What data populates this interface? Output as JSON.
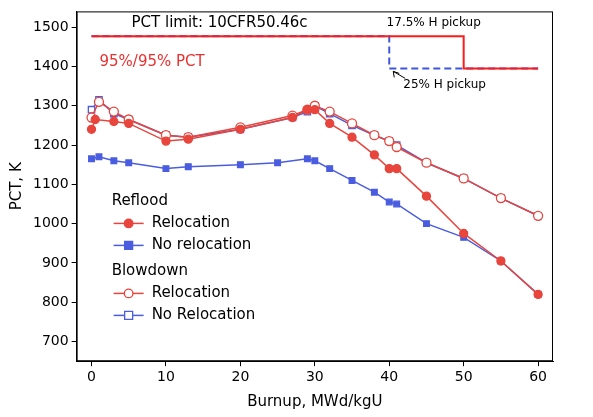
{
  "chart_data": {
    "type": "line",
    "x_label": "Burnup, MWd/kgU",
    "y_label": "PCT, K",
    "xlim": [
      -2,
      62
    ],
    "xticks": [
      0,
      10,
      20,
      30,
      40,
      50,
      60
    ],
    "ylim": [
      650,
      1540
    ],
    "yticks": [
      700,
      800,
      900,
      1000,
      1100,
      1200,
      1300,
      1400,
      1500
    ],
    "grid": false,
    "series": [
      {
        "group": "Reflood",
        "name": "Relocation",
        "color": "#e8453c",
        "marker": "circle",
        "line_style": "solid",
        "x": [
          0,
          0.5,
          3,
          5,
          10,
          13,
          20,
          27,
          29,
          30,
          32,
          35,
          38,
          40,
          41,
          45,
          50,
          55,
          60
        ],
        "values": [
          1240,
          1265,
          1260,
          1255,
          1210,
          1215,
          1240,
          1270,
          1290,
          1290,
          1255,
          1220,
          1175,
          1140,
          1140,
          1070,
          975,
          905,
          820
        ]
      },
      {
        "group": "Reflood",
        "name": "No relocation",
        "color": "#4a5de0",
        "marker": "square",
        "line_style": "solid",
        "x": [
          0,
          1,
          3,
          5,
          10,
          13,
          20,
          25,
          29,
          30,
          32,
          35,
          38,
          40,
          41,
          45,
          50,
          55,
          60
        ],
        "values": [
          1165,
          1170,
          1160,
          1155,
          1140,
          1145,
          1150,
          1155,
          1165,
          1160,
          1140,
          1110,
          1080,
          1055,
          1050,
          1000,
          965,
          905,
          820
        ]
      },
      {
        "group": "Blowdown",
        "name": "Relocation",
        "color": "#e8453c",
        "marker": "open_circle",
        "line_style": "solid",
        "x": [
          0,
          1,
          3,
          5,
          10,
          13,
          20,
          27,
          29,
          30,
          32,
          35,
          38,
          40,
          41,
          45,
          50,
          55,
          60
        ],
        "values": [
          1270,
          1310,
          1285,
          1265,
          1225,
          1220,
          1245,
          1275,
          1290,
          1300,
          1285,
          1255,
          1225,
          1210,
          1195,
          1155,
          1115,
          1065,
          1020
        ]
      },
      {
        "group": "Blowdown",
        "name": "No Relocation",
        "color": "#4a5de0",
        "marker": "open_square",
        "line_style": "solid",
        "x": [
          0,
          1,
          3,
          5,
          10,
          13,
          20,
          27,
          29,
          30,
          32,
          35,
          38,
          40,
          41,
          45,
          50,
          55,
          60
        ],
        "values": [
          1290,
          1315,
          1280,
          1265,
          1225,
          1220,
          1240,
          1270,
          1285,
          1300,
          1280,
          1250,
          1225,
          1210,
          1200,
          1155,
          1115,
          1065,
          1020
        ]
      }
    ],
    "limits": {
      "title": "PCT limit: 10CFR50.46c",
      "lines": [
        {
          "label": "17.5% H pickup",
          "color": "#ff1a1a",
          "line_style": "solid",
          "x": [
            0,
            50,
            50,
            60
          ],
          "values": [
            1477,
            1477,
            1395,
            1395
          ]
        },
        {
          "label": "25% H pickup",
          "color": "#3f57e0",
          "line_style": "dashed",
          "x": [
            0,
            40,
            40,
            60
          ],
          "values": [
            1477,
            1477,
            1395,
            1395
          ]
        }
      ]
    },
    "annotations": [
      {
        "text": "95%/95% PCT",
        "color": "#e8312f"
      }
    ]
  }
}
